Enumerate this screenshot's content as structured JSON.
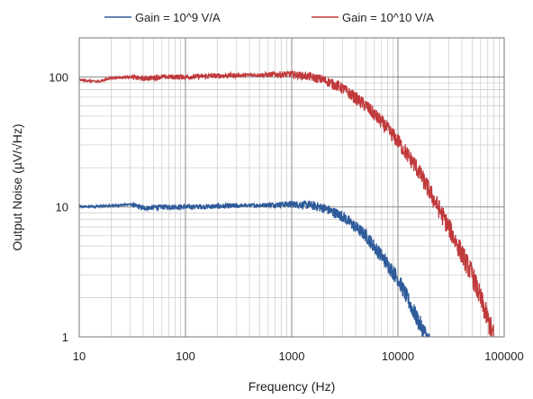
{
  "chart_data": {
    "type": "line",
    "title": "",
    "xlabel": "Frequency (Hz)",
    "ylabel": "Output Noise (µV/√Hz)",
    "xscale": "log",
    "yscale": "log",
    "xlim": [
      10,
      100000
    ],
    "ylim": [
      1,
      200
    ],
    "grid": true,
    "legend_position": "top",
    "xticks": [
      "10",
      "100",
      "1000",
      "10000",
      "100000"
    ],
    "yticks": [
      "1",
      "10",
      "100"
    ],
    "series": [
      {
        "name": "Gain = 10^9 V/A",
        "color": "#2e5b9a",
        "x": [
          10,
          20,
          30,
          40,
          60,
          100,
          200,
          500,
          1000,
          1500,
          2000,
          3000,
          5000,
          7000,
          10000,
          15000,
          20000
        ],
        "y": [
          10,
          10.2,
          10.5,
          9.8,
          10,
          10,
          10.1,
          10.3,
          10.5,
          10.3,
          9.8,
          8.5,
          6,
          4.2,
          2.8,
          1.4,
          0.9
        ]
      },
      {
        "name": "Gain = 10^10 V/A",
        "color": "#c0393b",
        "x": [
          10,
          15,
          20,
          30,
          40,
          60,
          100,
          200,
          500,
          1000,
          1500,
          2000,
          3000,
          5000,
          7000,
          10000,
          15000,
          20000,
          30000,
          50000,
          80000
        ],
        "y": [
          95,
          92,
          98,
          100,
          97,
          100,
          100,
          102,
          104,
          105,
          100,
          95,
          82,
          60,
          45,
          32,
          20,
          13,
          7,
          3,
          1
        ]
      }
    ]
  }
}
